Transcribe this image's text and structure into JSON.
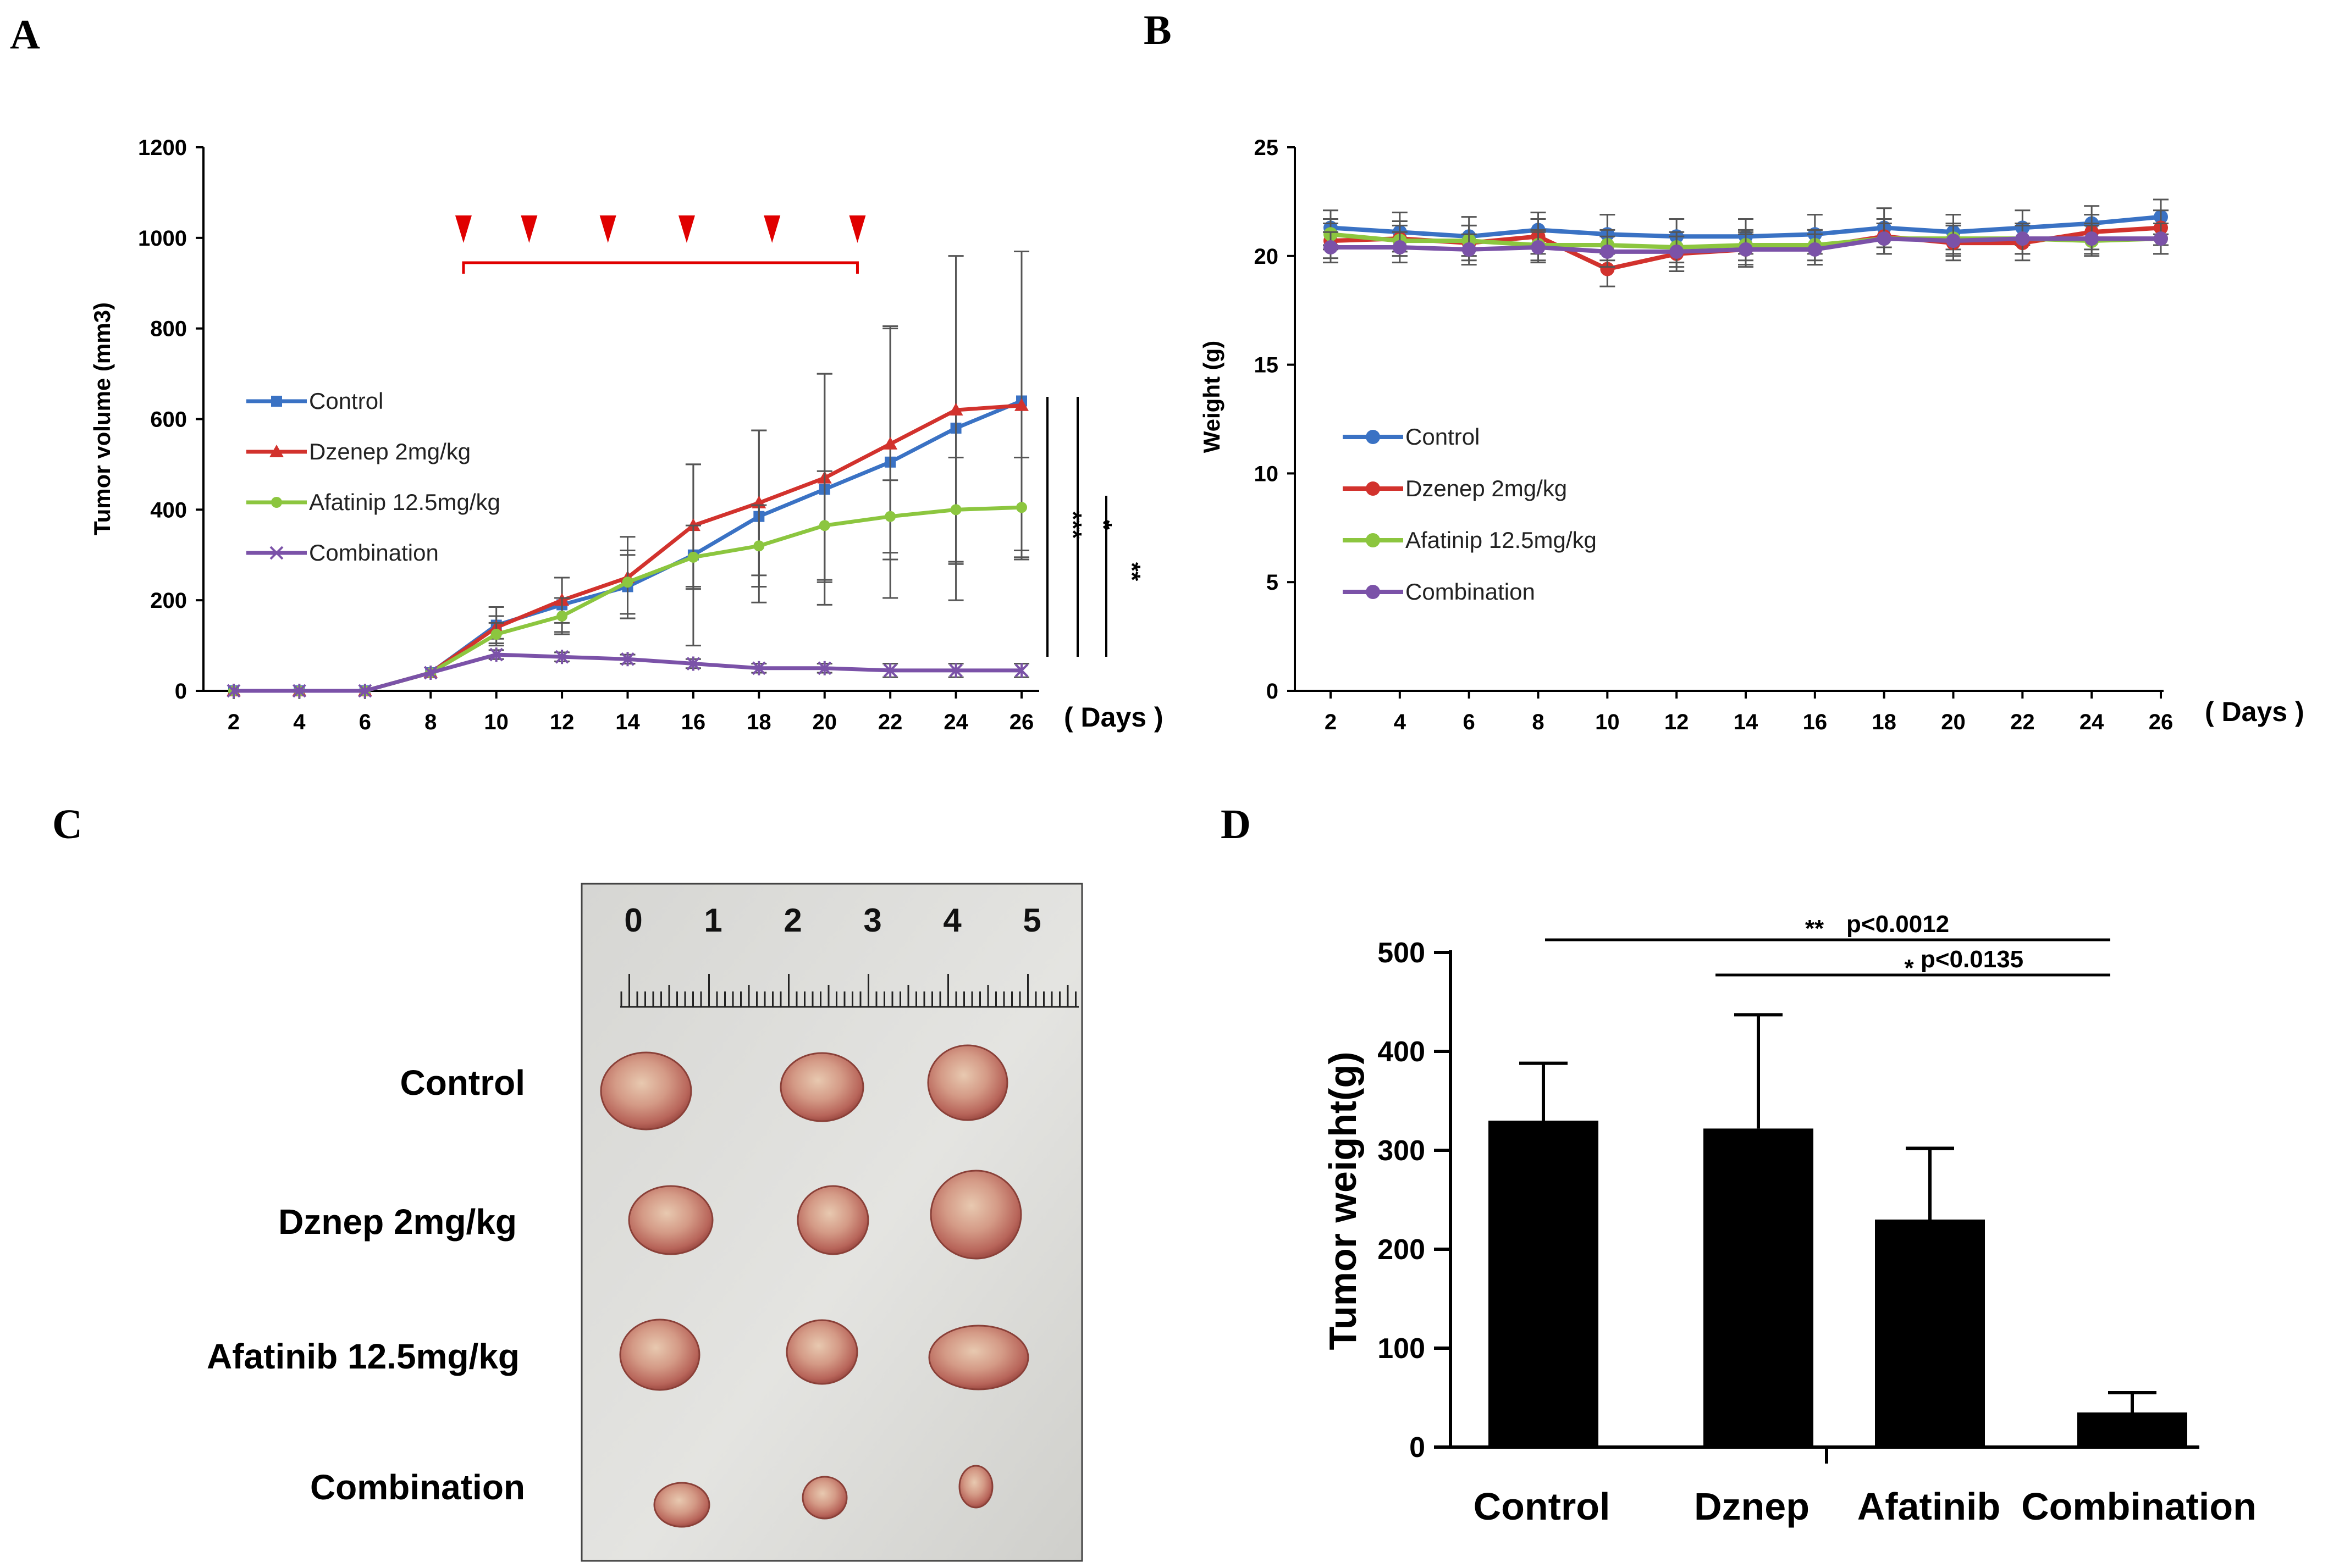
{
  "panels": {
    "A": "A",
    "B": "B",
    "C": "C",
    "D": "D"
  },
  "colors": {
    "control": "#3a72c4",
    "dzenep": "#d2322d",
    "afatinib": "#8cc63f",
    "combination": "#7b52a8",
    "arrow": "#e00000",
    "errorbar": "#555555"
  },
  "chart_data": [
    {
      "type": "line",
      "x": [
        2,
        4,
        6,
        8,
        10,
        12,
        14,
        16,
        18,
        20,
        22,
        24,
        26
      ],
      "xlabel": "( Days )",
      "ylabel": "Tumor volume (mm3)",
      "ylim": [
        0,
        1200
      ],
      "yticks": [
        "0",
        "200",
        "400",
        "600",
        "800",
        "1000",
        "1200"
      ],
      "xticks": [
        "2",
        "4",
        "6",
        "8",
        "10",
        "12",
        "14",
        "16",
        "18",
        "20",
        "22",
        "24",
        "26"
      ],
      "treatment_days": [
        9,
        11,
        13.4,
        15.8,
        18.4,
        21
      ],
      "treatment_span": [
        9,
        21
      ],
      "significance": [
        "***",
        "*",
        "**"
      ],
      "series": [
        {
          "name": "Control",
          "key": "control",
          "marker": "square",
          "values": [
            0,
            0,
            0,
            40,
            145,
            190,
            230,
            300,
            385,
            445,
            505,
            580,
            640
          ],
          "errors": [
            0,
            0,
            0,
            0,
            40,
            60,
            70,
            200,
            190,
            255,
            300,
            380,
            330
          ]
        },
        {
          "name": "Dzenep 2mg/kg",
          "key": "dzenep",
          "marker": "triangle",
          "values": [
            0,
            0,
            0,
            40,
            140,
            200,
            250,
            365,
            415,
            470,
            545,
            620,
            630
          ],
          "errors": [
            0,
            0,
            0,
            0,
            25,
            50,
            90,
            135,
            160,
            230,
            255,
            340,
            340
          ]
        },
        {
          "name": "Afatinip 12.5mg/kg",
          "key": "afatinib",
          "marker": "circle",
          "values": [
            0,
            0,
            0,
            40,
            125,
            165,
            240,
            295,
            320,
            365,
            385,
            400,
            405
          ],
          "errors": [
            0,
            0,
            0,
            0,
            25,
            40,
            70,
            70,
            90,
            120,
            80,
            115,
            110
          ]
        },
        {
          "name": "Combination",
          "key": "combination",
          "marker": "x",
          "values": [
            0,
            0,
            0,
            40,
            80,
            75,
            70,
            60,
            50,
            50,
            45,
            45,
            45
          ],
          "errors": [
            0,
            0,
            0,
            0,
            10,
            10,
            10,
            10,
            10,
            10,
            15,
            15,
            15
          ]
        }
      ]
    },
    {
      "type": "line",
      "x": [
        2,
        4,
        6,
        8,
        10,
        12,
        14,
        16,
        18,
        20,
        22,
        24,
        26
      ],
      "xlabel": "( Days )",
      "ylabel": "Weight (g)",
      "ylim": [
        0,
        25
      ],
      "yticks": [
        "0",
        "5",
        "10",
        "15",
        "20",
        "25"
      ],
      "xticks": [
        "2",
        "4",
        "6",
        "8",
        "10",
        "12",
        "14",
        "16",
        "18",
        "20",
        "22",
        "24",
        "26"
      ],
      "series": [
        {
          "name": "Control",
          "key": "control",
          "values": [
            21.3,
            21.1,
            20.9,
            21.2,
            21.0,
            20.9,
            20.9,
            21.0,
            21.3,
            21.1,
            21.3,
            21.5,
            21.8
          ],
          "errors": [
            0.8,
            0.9,
            0.9,
            0.8,
            0.9,
            0.8,
            0.8,
            0.9,
            0.9,
            0.8,
            0.8,
            0.8,
            0.8
          ]
        },
        {
          "name": "Dzenep 2mg/kg",
          "key": "dzenep",
          "values": [
            20.7,
            20.8,
            20.6,
            20.9,
            19.4,
            20.1,
            20.3,
            20.4,
            20.9,
            20.6,
            20.6,
            21.1,
            21.3
          ],
          "errors": [
            0.8,
            0.8,
            0.8,
            0.8,
            0.8,
            0.8,
            0.8,
            0.8,
            0.8,
            0.8,
            0.8,
            0.8,
            0.8
          ]
        },
        {
          "name": "Afatinip 12.5mg/kg",
          "key": "afatinib",
          "values": [
            21.0,
            20.7,
            20.7,
            20.5,
            20.5,
            20.4,
            20.5,
            20.5,
            20.8,
            20.8,
            20.8,
            20.7,
            20.8
          ],
          "errors": [
            0.7,
            0.7,
            0.7,
            0.7,
            0.7,
            0.7,
            0.7,
            0.7,
            0.7,
            0.7,
            0.7,
            0.7,
            0.7
          ]
        },
        {
          "name": "Combination",
          "key": "combination",
          "values": [
            20.4,
            20.4,
            20.3,
            20.4,
            20.2,
            20.2,
            20.3,
            20.3,
            20.8,
            20.7,
            20.8,
            20.8,
            20.8
          ],
          "errors": [
            0.7,
            0.7,
            0.7,
            0.7,
            0.7,
            0.7,
            0.7,
            0.7,
            0.7,
            0.7,
            0.7,
            0.7,
            0.7
          ]
        }
      ]
    },
    {
      "type": "bar",
      "categories": [
        "Control",
        "Dznep",
        "Afatinib",
        "Combination"
      ],
      "values": [
        330,
        322,
        230,
        35
      ],
      "errors": [
        58,
        115,
        72,
        20
      ],
      "ylabel": "Tumor weight(g)",
      "ylim": [
        0,
        500
      ],
      "yticks": [
        "0",
        "100",
        "200",
        "300",
        "400",
        "500"
      ],
      "comparisons": [
        {
          "stars": "**",
          "text": "p<0.0012",
          "from": 0,
          "to": 3
        },
        {
          "stars": "*",
          "text": "p<0.0135",
          "from": 1,
          "to": 3
        }
      ]
    }
  ],
  "photo": {
    "ruler_numbers": [
      "0",
      "1",
      "2",
      "3",
      "4",
      "5"
    ],
    "rows": [
      "Control",
      "Dznep 2mg/kg",
      "Afatinib 12.5mg/kg",
      "Combination"
    ]
  }
}
